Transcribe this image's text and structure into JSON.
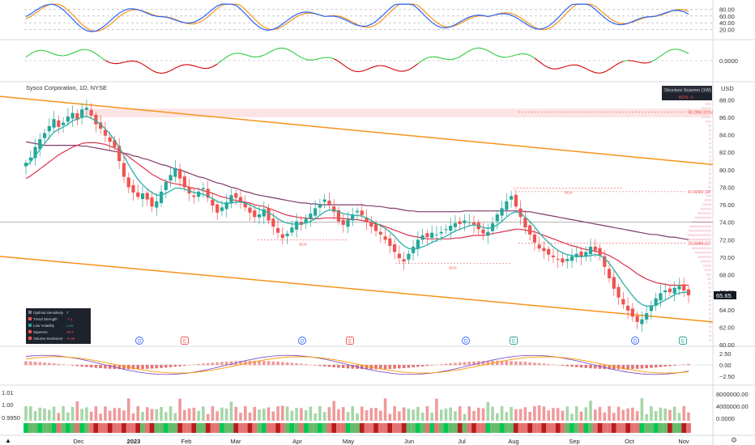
{
  "chart_data": {
    "type": "candlestick",
    "title": "Sysco Corporation, 1D, NYSE",
    "currency": "USD",
    "last_price": "65.65",
    "price_axis": {
      "ticks": [
        "88.00",
        "86.00",
        "84.00",
        "82.00",
        "80.00",
        "78.00",
        "76.00",
        "74.00",
        "72.00",
        "70.00",
        "68.00",
        "66.00",
        "64.00",
        "62.00",
        "60.00"
      ],
      "ylim": [
        60,
        88.5
      ]
    },
    "x_axis": {
      "ticks": [
        "Dec",
        "2023",
        "Feb",
        "Mar",
        "Apr",
        "May",
        "Jun",
        "Jul",
        "Aug",
        "Sep",
        "Oct",
        "Nov"
      ]
    },
    "close_series": [
      80.8,
      81.4,
      82.6,
      83.5,
      84.2,
      85.0,
      85.8,
      84.9,
      85.4,
      86.1,
      86.5,
      85.7,
      86.9,
      87.1,
      86.2,
      85.2,
      84.7,
      83.9,
      83.2,
      82.6,
      81.0,
      79.2,
      78.0,
      77.4,
      76.9,
      77.3,
      76.6,
      75.8,
      76.4,
      77.5,
      78.6,
      79.4,
      80.2,
      79.0,
      78.0,
      77.3,
      76.9,
      77.5,
      77.9,
      76.8,
      75.9,
      75.1,
      75.7,
      76.3,
      77.1,
      76.8,
      76.4,
      75.7,
      75.1,
      74.6,
      74.9,
      75.5,
      74.2,
      73.5,
      72.8,
      72.2,
      72.7,
      73.4,
      74.1,
      73.7,
      74.4,
      75.0,
      75.6,
      76.1,
      76.6,
      76.0,
      75.2,
      74.1,
      73.7,
      74.3,
      74.9,
      75.3,
      74.8,
      74.0,
      73.5,
      73.0,
      72.6,
      72.0,
      71.3,
      70.6,
      69.9,
      69.5,
      70.4,
      71.2,
      72.0,
      72.5,
      72.3,
      72.8,
      72.6,
      72.9,
      73.2,
      73.6,
      73.9,
      73.8,
      74.2,
      74.0,
      73.7,
      73.2,
      72.7,
      72.9,
      73.9,
      74.9,
      75.6,
      76.4,
      77.0,
      75.8,
      74.6,
      73.4,
      72.6,
      71.7,
      71.0,
      70.7,
      70.3,
      70.0,
      69.7,
      69.4,
      69.8,
      70.1,
      70.4,
      70.0,
      70.6,
      71.2,
      70.8,
      70.2,
      68.9,
      67.6,
      66.4,
      65.4,
      64.6,
      63.9,
      63.2,
      62.6,
      62.9,
      63.6,
      64.5,
      65.3,
      65.9,
      66.2,
      66.0,
      66.5,
      66.7,
      66.2,
      65.65
    ],
    "sma_fast": [
      80.4,
      80.9,
      81.6,
      82.3,
      83.0,
      83.7,
      84.3,
      84.6,
      84.9,
      85.2,
      85.6,
      85.8,
      86.0,
      86.1,
      85.9,
      85.6,
      85.2,
      84.7,
      84.1,
      83.4,
      82.6,
      81.6,
      80.6,
      79.7,
      78.9,
      78.3,
      77.8,
      77.4,
      77.1,
      77.1,
      77.3,
      77.6,
      77.9,
      77.9,
      77.8,
      77.6,
      77.4,
      77.3,
      77.2,
      77.0,
      76.7,
      76.4,
      76.2,
      76.1,
      76.2,
      76.3,
      76.3,
      76.2,
      76.0,
      75.7,
      75.5,
      75.3,
      75.1,
      74.8,
      74.4,
      74.1,
      73.9,
      73.8,
      73.8,
      73.8,
      73.9,
      74.1,
      74.4,
      74.8,
      75.2,
      75.4,
      75.4,
      75.2,
      75.0,
      74.9,
      74.8,
      74.8,
      74.7,
      74.5,
      74.2,
      73.9,
      73.6,
      73.3,
      72.9,
      72.4,
      71.8,
      71.3,
      71.0,
      70.9,
      71.0,
      71.2,
      71.4,
      71.7,
      71.9,
      72.2,
      72.4,
      72.7,
      73.0,
      73.2,
      73.4,
      73.6,
      73.7,
      73.6,
      73.4,
      73.3,
      73.4,
      73.7,
      74.1,
      74.6,
      75.0,
      75.2,
      75.0,
      74.6,
      74.1,
      73.5,
      72.8,
      72.2,
      71.7,
      71.2,
      70.8,
      70.5,
      70.3,
      70.2,
      70.1,
      70.1,
      70.1,
      70.2,
      70.3,
      70.2,
      69.9,
      69.3,
      68.6,
      67.8,
      67.0,
      66.3,
      65.6,
      65.0,
      64.6,
      64.4,
      64.4,
      64.5,
      64.8,
      65.1,
      65.4,
      65.7,
      65.9,
      66.0,
      66.0
    ],
    "sma_mid": [
      79.0,
      79.3,
      79.7,
      80.1,
      80.5,
      80.9,
      81.3,
      81.7,
      82.0,
      82.3,
      82.6,
      82.8,
      83.0,
      83.1,
      83.1,
      83.1,
      83.0,
      82.9,
      82.7,
      82.5,
      82.2,
      81.9,
      81.5,
      81.1,
      80.7,
      80.3,
      79.9,
      79.5,
      79.2,
      78.9,
      78.7,
      78.5,
      78.4,
      78.3,
      78.2,
      78.0,
      77.9,
      77.8,
      77.6,
      77.5,
      77.3,
      77.1,
      76.9,
      76.8,
      76.6,
      76.5,
      76.4,
      76.3,
      76.2,
      76.0,
      75.9,
      75.8,
      75.6,
      75.4,
      75.2,
      75.0,
      74.8,
      74.7,
      74.6,
      74.5,
      74.5,
      74.4,
      74.4,
      74.4,
      74.5,
      74.5,
      74.5,
      74.5,
      74.4,
      74.4,
      74.3,
      74.3,
      74.2,
      74.1,
      74.0,
      73.8,
      73.7,
      73.5,
      73.3,
      73.1,
      72.9,
      72.7,
      72.5,
      72.4,
      72.3,
      72.2,
      72.1,
      72.1,
      72.1,
      72.1,
      72.1,
      72.1,
      72.2,
      72.2,
      72.3,
      72.4,
      72.5,
      72.5,
      72.5,
      72.6,
      72.7,
      72.8,
      72.9,
      73.0,
      73.1,
      73.2,
      73.2,
      73.1,
      73.0,
      72.9,
      72.7,
      72.5,
      72.3,
      72.1,
      71.9,
      71.7,
      71.5,
      71.3,
      71.2,
      71.0,
      70.9,
      70.8,
      70.7,
      70.6,
      70.4,
      70.2,
      69.9,
      69.6,
      69.2,
      68.9,
      68.5,
      68.1,
      67.8,
      67.5,
      67.3,
      67.1,
      67.0,
      66.9,
      66.8,
      66.8,
      66.8,
      66.8,
      66.8
    ],
    "sma_slow": [
      83.2,
      83.1,
      83.0,
      82.9,
      82.8,
      82.8,
      82.8,
      82.8,
      82.8,
      82.8,
      82.8,
      82.8,
      82.7,
      82.7,
      82.6,
      82.5,
      82.4,
      82.3,
      82.2,
      82.1,
      82.0,
      81.9,
      81.8,
      81.6,
      81.5,
      81.3,
      81.2,
      81.0,
      80.8,
      80.6,
      80.5,
      80.3,
      80.1,
      80.0,
      79.8,
      79.6,
      79.4,
      79.2,
      79.1,
      78.9,
      78.7,
      78.5,
      78.4,
      78.2,
      78.0,
      77.9,
      77.7,
      77.5,
      77.4,
      77.2,
      77.1,
      77.0,
      76.9,
      76.8,
      76.7,
      76.6,
      76.5,
      76.4,
      76.3,
      76.2,
      76.2,
      76.1,
      76.1,
      76.0,
      76.0,
      76.0,
      76.0,
      76.0,
      76.0,
      76.0,
      76.0,
      76.0,
      76.0,
      75.9,
      75.9,
      75.8,
      75.8,
      75.7,
      75.6,
      75.6,
      75.5,
      75.4,
      75.3,
      75.3,
      75.2,
      75.2,
      75.2,
      75.2,
      75.2,
      75.2,
      75.2,
      75.2,
      75.2,
      75.2,
      75.3,
      75.3,
      75.3,
      75.3,
      75.3,
      75.3,
      75.3,
      75.3,
      75.3,
      75.3,
      75.3,
      75.3,
      75.3,
      75.2,
      75.2,
      75.1,
      75.0,
      74.9,
      74.8,
      74.7,
      74.6,
      74.5,
      74.4,
      74.3,
      74.2,
      74.1,
      74.0,
      73.9,
      73.8,
      73.7,
      73.6,
      73.5,
      73.4,
      73.3,
      73.2,
      73.1,
      73.0,
      72.9,
      72.8,
      72.7,
      72.6,
      72.6,
      72.5,
      72.4,
      72.3,
      72.3,
      72.2,
      72.1,
      72.0
    ],
    "channel_upper": [
      [
        0,
        88.4
      ],
      [
        1,
        80.6
      ]
    ],
    "channel_lower": [
      [
        0,
        70.1
      ],
      [
        1,
        62.6
      ]
    ],
    "levels": [
      {
        "label": "58.29M (31%)",
        "value": 86.6
      },
      {
        "label": "41.809M (22",
        "value": 77.5
      },
      {
        "label": "32.034M (17",
        "value": 71.6
      },
      {
        "label": "",
        "value": 74.0
      }
    ],
    "annotations": [
      "BOS",
      "BOS",
      "BOS"
    ],
    "event_markers": [
      "D",
      "E",
      "D",
      "E",
      "D",
      "E",
      "D",
      "E"
    ],
    "osc1": {
      "ticks": [
        "80.00",
        "60.00",
        "40.00",
        "20.00"
      ],
      "ylim": [
        0,
        100
      ]
    },
    "osc2": {
      "ticks": [
        "0.0000"
      ]
    },
    "osc3": {
      "ticks": [
        "2.50",
        "0.00",
        "−2.50"
      ]
    },
    "osc4": {
      "left_ticks": [
        "1.01",
        "1.00",
        "0.9950"
      ],
      "right_ticks": [
        "8000000.00",
        "4000000.00",
        "0.0000"
      ]
    }
  },
  "scanner": {
    "title": "Structure Scanner (1W)",
    "value": "BOS ↑L"
  },
  "stats_panel": {
    "rows": [
      {
        "label": "Optimal Sensitivity",
        "value": "7"
      },
      {
        "label": "Trend Strength",
        "value": "-7.1"
      },
      {
        "label": "Low Volatility",
        "value": "Low"
      },
      {
        "label": "Squeeze",
        "value": "18.2"
      },
      {
        "label": "Volume Sentiment",
        "value": "-0.46"
      }
    ]
  },
  "colors": {
    "up": "#26a69a",
    "down": "#ef5350",
    "channel": "#f7931a",
    "fast": "#2ab0a6",
    "mid": "#d9334d",
    "slow": "#7d3b6b"
  }
}
